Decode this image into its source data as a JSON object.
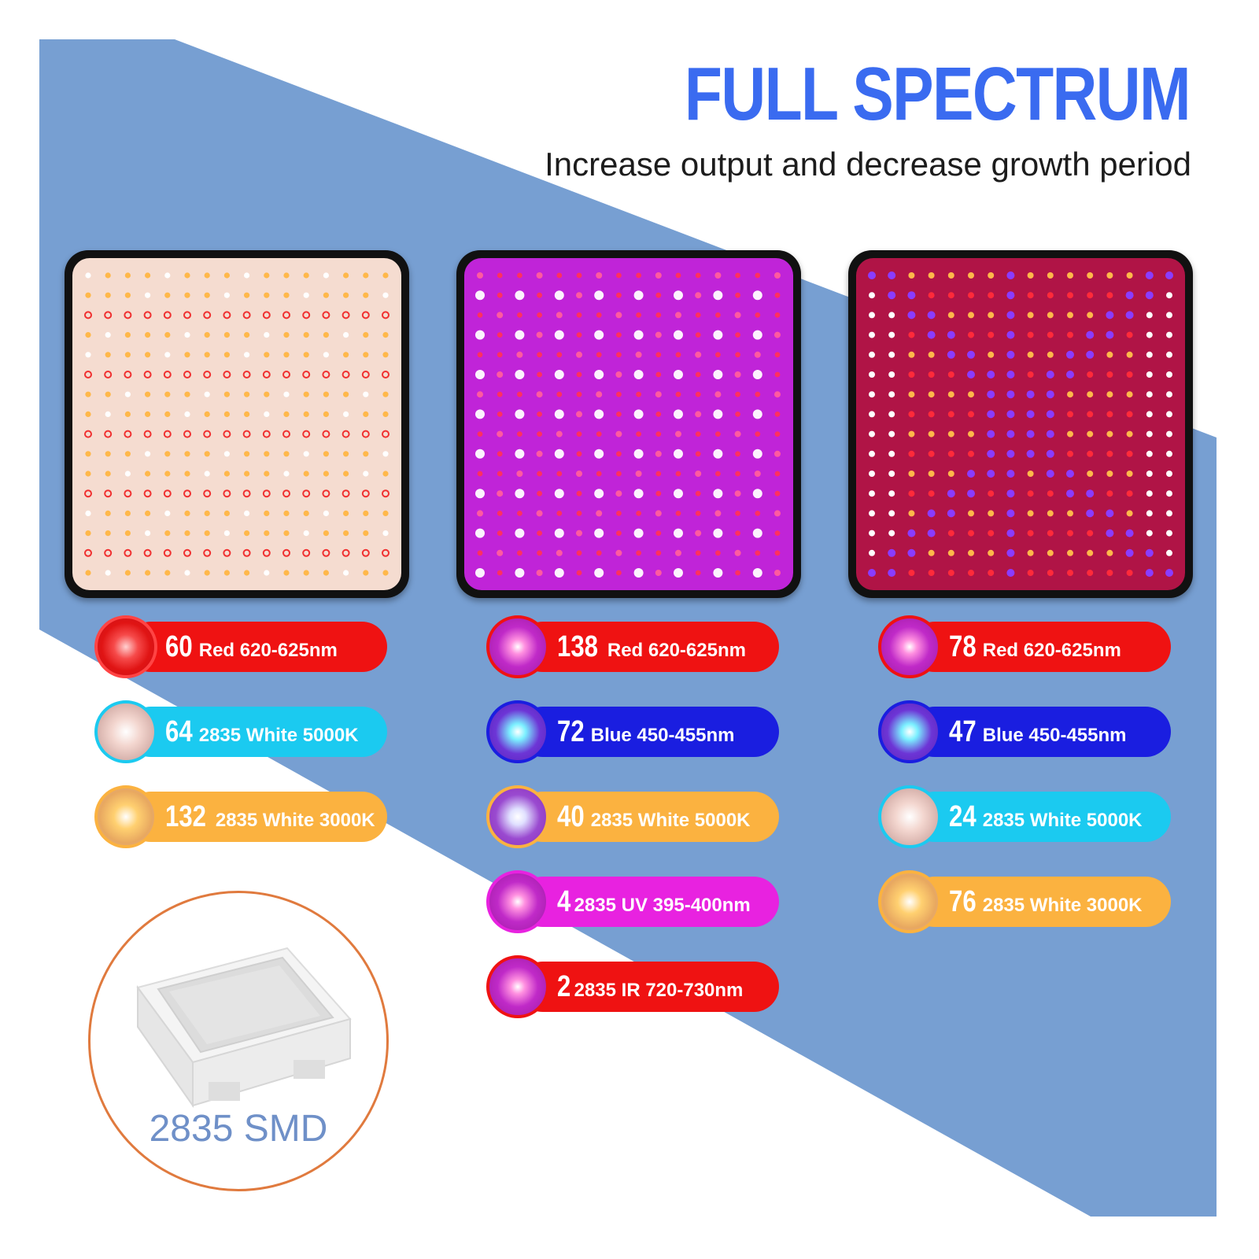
{
  "header": {
    "title": "FULL SPECTRUM",
    "subtitle": "Increase output and decrease growth period"
  },
  "colors": {
    "background_blue": "#779fd2",
    "title_blue": "#3a6bf0",
    "red": "#ef1212",
    "cyan": "#1bcaf0",
    "orange": "#fbb240",
    "blue": "#1a1ee0",
    "magenta": "#e822e0",
    "ring": "#e07a3e",
    "smd_text": "#6f90c8"
  },
  "panels": [
    {
      "name": "warm-white-panel",
      "icon": "led-panel-warm-icon"
    },
    {
      "name": "purple-panel",
      "icon": "led-panel-purple-icon"
    },
    {
      "name": "mixed-panel",
      "icon": "led-panel-mixed-icon"
    }
  ],
  "columns": [
    {
      "items": [
        {
          "count": "60",
          "label": "Red 620-625nm",
          "color": "red"
        },
        {
          "count": "64",
          "label": "2835 White 5000K",
          "color": "cyan"
        },
        {
          "count": "132",
          "label": "2835 White 3000K",
          "color": "orange"
        }
      ]
    },
    {
      "items": [
        {
          "count": "138",
          "label": "Red 620-625nm",
          "color": "red"
        },
        {
          "count": "72",
          "label": "Blue 450-455nm",
          "color": "blue"
        },
        {
          "count": "40",
          "label": "2835 White 5000K",
          "color": "orange"
        },
        {
          "count": "4",
          "label": "2835 UV 395-400nm",
          "color": "magenta"
        },
        {
          "count": "2",
          "label": "2835 IR 720-730nm",
          "color": "red"
        }
      ]
    },
    {
      "items": [
        {
          "count": "78",
          "label": "Red 620-625nm",
          "color": "red"
        },
        {
          "count": "47",
          "label": "Blue 450-455nm",
          "color": "blue"
        },
        {
          "count": "24",
          "label": "2835 White 5000K",
          "color": "cyan"
        },
        {
          "count": "76",
          "label": "2835 White 3000K",
          "color": "orange"
        }
      ]
    }
  ],
  "smd": {
    "label": "2835 SMD",
    "icon": "smd-chip-icon"
  }
}
